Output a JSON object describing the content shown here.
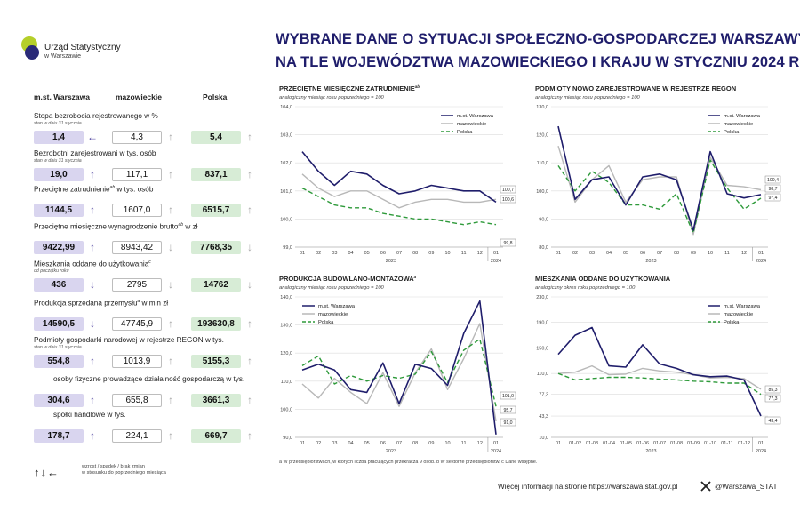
{
  "logo": {
    "line1": "Urząd Statystyczny",
    "line2": "w Warszawie"
  },
  "title": {
    "line1": "WYBRANE DANE O SYTUACJI SPOŁECZNO-GOSPODARCZEJ WARSZAWY",
    "line2": "NA TLE WOJEWÓDZTWA MAZOWIECKIEGO I KRAJU W STYCZNIU 2024 R."
  },
  "columns": {
    "warszawa": "m.st. Warszawa",
    "mazowieckie": "mazowieckie",
    "polska": "Polska"
  },
  "indicators": [
    {
      "label": "Stopa bezrobocia rejestrowanego w %",
      "sub": "stan w dniu 31 stycznia",
      "w": "1,4",
      "wa": "left",
      "m": "4,3",
      "ma": "up",
      "p": "5,4",
      "pa": "up"
    },
    {
      "label": "Bezrobotni zarejestrowani w tys. osób",
      "sub": "stan w dniu 31 stycznia",
      "w": "19,0",
      "wa": "up",
      "m": "117,1",
      "ma": "up",
      "p": "837,1",
      "pa": "up"
    },
    {
      "label": "Przeciętne zatrudnienie",
      "sup": "ab",
      "label2": " w tys. osób",
      "sub": "",
      "w": "1144,5",
      "wa": "up",
      "m": "1607,0",
      "ma": "up",
      "p": "6515,7",
      "pa": "up"
    },
    {
      "label": "Przeciętne miesięczne wynagrodzenie brutto",
      "sup": "ab",
      "label2": " w zł",
      "sub": "",
      "w": "9422,99",
      "wa": "up",
      "m": "8943,42",
      "ma": "down",
      "p": "7768,35",
      "pa": "down"
    },
    {
      "label": "Mieszkania oddane do użytkowania",
      "sup": "c",
      "label2": "",
      "sub": "od początku roku",
      "w": "436",
      "wa": "down",
      "m": "2795",
      "ma": "down",
      "p": "14762",
      "pa": "down"
    },
    {
      "label": "Produkcja sprzedana przemysłu",
      "sup": "a",
      "label2": " w mln zł",
      "sub": "",
      "w": "14590,5",
      "wa": "down",
      "m": "47745,9",
      "ma": "up",
      "p": "193630,8",
      "pa": "up"
    },
    {
      "label": "Podmioty gospodarki narodowej w rejestrze REGON w tys.",
      "sub": "stan w dniu 31 stycznia",
      "w": "554,8",
      "wa": "up",
      "m": "1013,9",
      "ma": "up",
      "p": "5155,3",
      "pa": "up"
    },
    {
      "label": "osoby fizyczne prowadzące działalność gospodarczą w tys.",
      "sub": "",
      "w": "304,6",
      "wa": "up",
      "m": "655,8",
      "ma": "up",
      "p": "3661,3",
      "pa": "up"
    },
    {
      "label": "spółki handlowe w tys.",
      "sub": "",
      "w": "178,7",
      "wa": "up",
      "m": "224,1",
      "ma": "up",
      "p": "669,7",
      "pa": "up"
    }
  ],
  "legend_arrows": {
    "symbols": "↑↓←",
    "line1": "wzrost / spadek / brak zmian",
    "line2": "w stosunku do poprzedniego miesiąca"
  },
  "footnote": "a W przedsiębiorstwach, w których liczba pracujących przekracza 9 osób.   b W sektorze przedsiębiorstw.   c Dane wstępne.",
  "more_info": "Więcej informacji na stronie https://warszawa.stat.gov.pl",
  "twitter": "@Warszawa_STAT",
  "colors": {
    "warszawa": "#1f1d6b",
    "mazowieckie": "#b8b8b8",
    "polska": "#2e9a3a",
    "title": "#1f1d6b"
  },
  "chart_data": [
    {
      "type": "line",
      "title": "PRZECIĘTNE MIESIĘCZNE ZATRUDNIENIE",
      "title_sup": "ab",
      "subtitle": "analogiczny miesiąc roku poprzedniego = 100",
      "x": [
        "01",
        "02",
        "03",
        "04",
        "05",
        "06",
        "07",
        "08",
        "09",
        "10",
        "11",
        "12",
        "01"
      ],
      "year_labels": [
        "2023",
        "2024"
      ],
      "y_ticks": [
        "99,0",
        "100,0",
        "101,0",
        "102,0",
        "103,0",
        "104,0"
      ],
      "ylim": [
        99,
        104
      ],
      "series": [
        {
          "name": "m.st. Warszawa",
          "values": [
            102.4,
            101.7,
            101.2,
            101.7,
            101.6,
            101.2,
            100.9,
            101.0,
            101.2,
            101.1,
            101.0,
            101.0,
            100.6
          ]
        },
        {
          "name": "mazowieckie",
          "values": [
            101.6,
            101.1,
            100.8,
            101.0,
            101.0,
            100.7,
            100.4,
            100.6,
            100.7,
            100.7,
            100.6,
            100.6,
            100.7
          ]
        },
        {
          "name": "Polska",
          "values": [
            101.1,
            100.8,
            100.5,
            100.4,
            100.4,
            100.2,
            100.1,
            100.0,
            100.0,
            99.9,
            99.8,
            99.9,
            99.8
          ]
        }
      ],
      "end_labels": [
        "100,7",
        "100,6",
        "99,8"
      ],
      "legend": "top-right"
    },
    {
      "type": "line",
      "title": "PODMIOTY NOWO ZAREJESTROWANE W REJESTRZE REGON",
      "subtitle": "analogiczny miesiąc roku poprzedniego = 100",
      "x": [
        "01",
        "02",
        "03",
        "04",
        "05",
        "06",
        "07",
        "08",
        "09",
        "10",
        "11",
        "12",
        "01"
      ],
      "year_labels": [
        "2023",
        "2024"
      ],
      "y_ticks": [
        "80,0",
        "90,0",
        "100,0",
        "110,0",
        "120,0",
        "130,0"
      ],
      "ylim": [
        80,
        130
      ],
      "series": [
        {
          "name": "m.st. Warszawa",
          "values": [
            123.0,
            97.0,
            104.0,
            105.0,
            95.0,
            105.0,
            106.0,
            104.0,
            86.0,
            114.0,
            99.0,
            97.5,
            98.7
          ]
        },
        {
          "name": "mazowieckie",
          "values": [
            116.0,
            96.0,
            104.0,
            109.0,
            96.0,
            104.0,
            105.0,
            105.0,
            84.5,
            112.0,
            102.0,
            101.5,
            100.4
          ]
        },
        {
          "name": "Polska",
          "values": [
            109.0,
            100.0,
            107.0,
            103.0,
            95.0,
            95.0,
            93.5,
            99.0,
            85.0,
            111.0,
            101.0,
            93.5,
            97.4
          ]
        }
      ],
      "end_labels": [
        "100,4",
        "98,7",
        "97,4"
      ],
      "legend": "top-right"
    },
    {
      "type": "line",
      "title": "PRODUKCJA BUDOWLANO-MONTAŻOWA",
      "title_sup": "a",
      "subtitle": "analogiczny miesiąc roku poprzedniego = 100",
      "x": [
        "01",
        "02",
        "03",
        "04",
        "05",
        "06",
        "07",
        "08",
        "09",
        "10",
        "11",
        "12",
        "01"
      ],
      "year_labels": [
        "2023",
        "2024"
      ],
      "y_ticks": [
        "90,0",
        "100,0",
        "110,0",
        "120,0",
        "130,0",
        "140,0"
      ],
      "ylim": [
        90,
        140
      ],
      "series": [
        {
          "name": "m.st. Warszawa",
          "values": [
            114.0,
            116.0,
            114.0,
            107.0,
            106.0,
            116.5,
            102.0,
            116.0,
            114.5,
            108.5,
            127.0,
            138.5,
            91.0
          ]
        },
        {
          "name": "mazowieckie",
          "values": [
            109.0,
            104.0,
            111.0,
            106.0,
            102.0,
            113.0,
            101.0,
            113.0,
            121.5,
            107.0,
            118.0,
            130.5,
            95.7
          ]
        },
        {
          "name": "Polska",
          "values": [
            115.5,
            119.0,
            109.0,
            112.0,
            110.0,
            112.0,
            111.0,
            112.5,
            120.5,
            109.5,
            121.0,
            125.0,
            101.0
          ]
        }
      ],
      "end_labels": [
        "101,0",
        "95,7",
        "91,0"
      ],
      "legend": "top-left"
    },
    {
      "type": "line",
      "title": "MIESZKANIA ODDANE DO UŻYTKOWANIA",
      "subtitle": "analogiczny okres roku poprzedniego = 100",
      "x": [
        "01",
        "01-02",
        "01-03",
        "01-04",
        "01-05",
        "01-06",
        "01-07",
        "01-08",
        "01-09",
        "01-10",
        "01-11",
        "01-12",
        "01"
      ],
      "year_labels": [
        "2023",
        "2024"
      ],
      "y_ticks": [
        "10,0",
        "43,3",
        "77,3",
        "110,0",
        "150,0",
        "190,0",
        "230,0"
      ],
      "ylim": [
        10,
        230
      ],
      "series": [
        {
          "name": "m.st. Warszawa",
          "values": [
            140.0,
            170.0,
            182.0,
            122.0,
            120.0,
            155.0,
            125.0,
            118.0,
            108.0,
            105.0,
            106.0,
            100.0,
            43.4
          ]
        },
        {
          "name": "mazowieckie",
          "values": [
            110.0,
            112.0,
            122.0,
            108.0,
            109.0,
            118.0,
            114.0,
            112.0,
            108.0,
            103.0,
            104.0,
            102.0,
            85.3
          ]
        },
        {
          "name": "Polska",
          "values": [
            110.0,
            100.0,
            102.0,
            104.0,
            104.0,
            103.0,
            101.0,
            100.0,
            98.0,
            97.0,
            95.0,
            95.0,
            77.3
          ]
        }
      ],
      "end_labels": [
        "85,3",
        "77,3",
        "43,4"
      ],
      "legend": "top-right"
    }
  ]
}
